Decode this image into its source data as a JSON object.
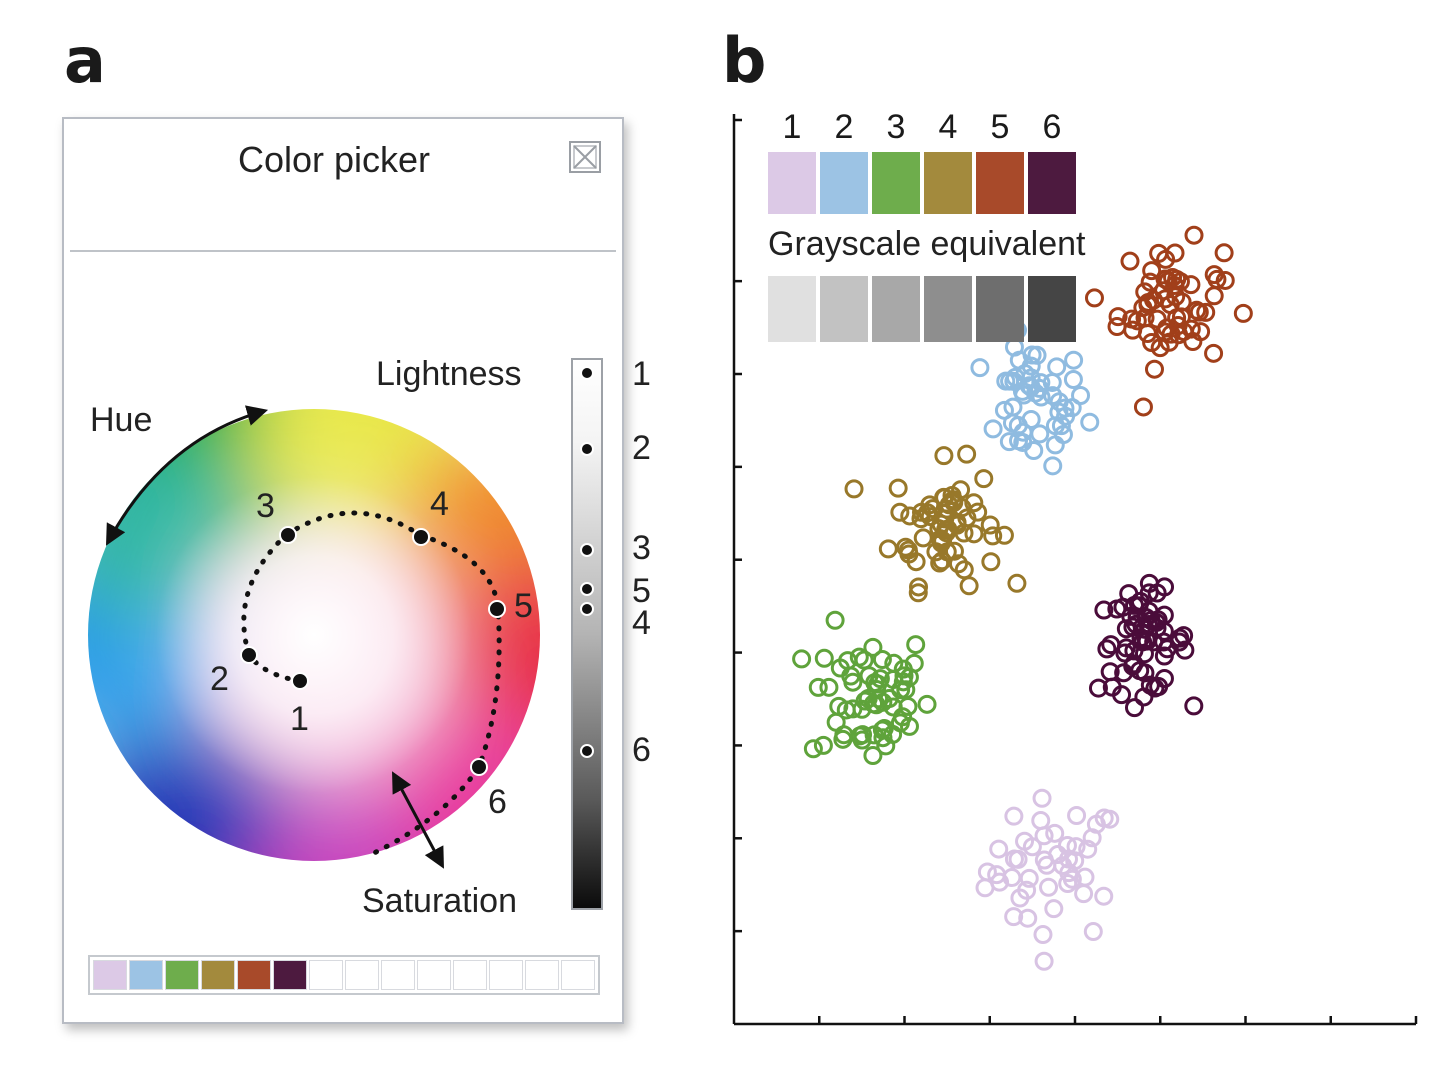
{
  "panel_a": {
    "letter": "a",
    "window_title": "Color picker",
    "close_icon": "close-box-icon",
    "labels": {
      "hue": "Hue",
      "lightness": "Lightness",
      "saturation": "Saturation"
    },
    "wheel_points": [
      "1",
      "2",
      "3",
      "4",
      "5",
      "6"
    ],
    "lightness_scale_labels": [
      "1",
      "2",
      "3",
      "5",
      "4",
      "6"
    ],
    "swatches": [
      "#dcc9e6",
      "#9cc3e4",
      "#6ead4c",
      "#a38a3d",
      "#a84a2a",
      "#4d1a3f",
      "#ffffff",
      "#ffffff",
      "#ffffff",
      "#ffffff",
      "#ffffff",
      "#ffffff",
      "#ffffff",
      "#ffffff"
    ]
  },
  "panel_b": {
    "letter": "b",
    "legend_numbers": [
      "1",
      "2",
      "3",
      "4",
      "5",
      "6"
    ],
    "legend_colors": [
      "#dcc9e6",
      "#9cc3e4",
      "#6ead4c",
      "#a38a3d",
      "#a84a2a",
      "#4d1a3f"
    ],
    "grayscale_title": "Grayscale equivalent",
    "grayscale_colors": [
      "#e0e0e0",
      "#c2c2c2",
      "#a8a8a8",
      "#8e8e8e",
      "#6e6e6e",
      "#454545"
    ]
  },
  "chart_data": {
    "type": "scatter",
    "title": "",
    "xlabel": "",
    "ylabel": "",
    "xlim": [
      0,
      100
    ],
    "ylim": [
      0,
      100
    ],
    "grid": false,
    "series": [
      {
        "name": "1",
        "color": "#d8c3e3",
        "center": [
          47,
          17
        ],
        "spread": [
          9,
          7
        ],
        "count": 45
      },
      {
        "name": "2",
        "color": "#8fbbe0",
        "center": [
          44,
          68
        ],
        "spread": [
          7,
          6
        ],
        "count": 50
      },
      {
        "name": "3",
        "color": "#5fa33b",
        "center": [
          20,
          36
        ],
        "spread": [
          8,
          7
        ],
        "count": 60
      },
      {
        "name": "4",
        "color": "#98782a",
        "center": [
          31,
          55
        ],
        "spread": [
          7,
          6
        ],
        "count": 60
      },
      {
        "name": "5",
        "color": "#a13f1a",
        "center": [
          64,
          79
        ],
        "spread": [
          7,
          6
        ],
        "count": 60
      },
      {
        "name": "6",
        "color": "#4a0c3a",
        "center": [
          60,
          42
        ],
        "spread": [
          6,
          5
        ],
        "count": 60
      }
    ]
  }
}
